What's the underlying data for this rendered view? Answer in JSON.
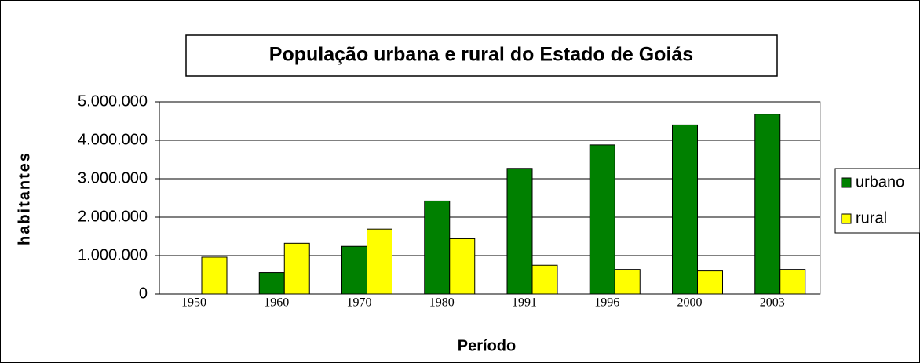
{
  "chart_data": {
    "type": "bar",
    "title": "População urbana e rural do Estado de Goiás",
    "x_label": "Período",
    "y_label": "habitantes",
    "categories": [
      "1950",
      "1960",
      "1970",
      "1980",
      "1991",
      "1996",
      "2000",
      "2003"
    ],
    "series": [
      {
        "name": "urbano",
        "color": "#008000",
        "values": [
          0,
          560000,
          1240000,
          2420000,
          3270000,
          3880000,
          4400000,
          4680000
        ]
      },
      {
        "name": "rural",
        "color": "#ffff00",
        "values": [
          960000,
          1320000,
          1690000,
          1440000,
          750000,
          640000,
          600000,
          640000
        ]
      }
    ],
    "ylim": [
      0,
      5000000
    ],
    "yticks": [
      0,
      {
        "value": 1000000,
        "label": "1.000.000"
      },
      {
        "value": 2000000,
        "label": "2.000.000"
      },
      {
        "value": 3000000,
        "label": "3.000.000"
      },
      {
        "value": 4000000,
        "label": "4.000.000"
      },
      {
        "value": 5000000,
        "label": "5.000.000"
      }
    ],
    "grid": true,
    "legend": "right"
  }
}
